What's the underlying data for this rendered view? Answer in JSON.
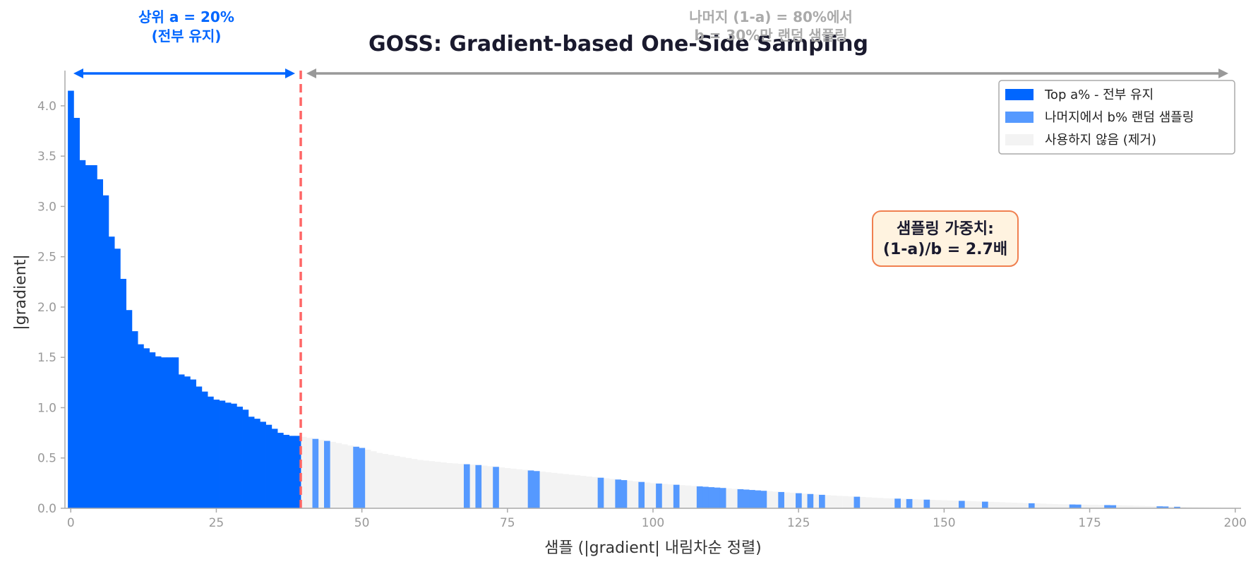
{
  "chart_data": {
    "type": "bar",
    "title": "GOSS: Gradient-based One-Side Sampling",
    "xlabel": "샘플 (|gradient| 내림차순 정렬)",
    "ylabel": "|gradient|",
    "xlim": [
      -1,
      201
    ],
    "ylim": [
      0,
      4.35
    ],
    "xticks": [
      0,
      25,
      50,
      75,
      100,
      125,
      150,
      175,
      200
    ],
    "yticks": [
      "0.0",
      "0.5",
      "1.0",
      "1.5",
      "2.0",
      "2.5",
      "3.0",
      "3.5",
      "4.0"
    ],
    "grid": false,
    "legend_position": "top-right",
    "threshold_x": 39.5,
    "series_names": [
      "Top a% - 전부 유지",
      "나머지에서 b% 랜덤 샘플링",
      "사용하지 않음 (제거)"
    ],
    "colors": {
      "top": "#0066ff",
      "sampled": "#5599ff",
      "unused": "#f3f3f3",
      "threshold": "#ff6666",
      "arrow_top": "#0066ff",
      "arrow_rest": "#999999",
      "weight_box_fill": "#fff3e0",
      "weight_box_edge": "#f08050"
    },
    "top_values": [
      4.15,
      3.88,
      3.46,
      3.41,
      3.41,
      3.27,
      3.11,
      2.7,
      2.58,
      2.28,
      1.97,
      1.76,
      1.63,
      1.59,
      1.55,
      1.51,
      1.5,
      1.5,
      1.5,
      1.33,
      1.31,
      1.28,
      1.21,
      1.16,
      1.11,
      1.08,
      1.07,
      1.05,
      1.04,
      1.01,
      0.98,
      0.91,
      0.89,
      0.86,
      0.83,
      0.79,
      0.75,
      0.73,
      0.72,
      0.72
    ],
    "rest_anchors": [
      [
        40,
        0.71
      ],
      [
        45,
        0.66
      ],
      [
        50,
        0.6
      ],
      [
        53,
        0.55
      ],
      [
        60,
        0.48
      ],
      [
        65,
        0.45
      ],
      [
        70,
        0.43
      ],
      [
        80,
        0.37
      ],
      [
        90,
        0.31
      ],
      [
        100,
        0.25
      ],
      [
        110,
        0.21
      ],
      [
        120,
        0.17
      ],
      [
        130,
        0.13
      ],
      [
        140,
        0.1
      ],
      [
        150,
        0.08
      ],
      [
        160,
        0.06
      ],
      [
        170,
        0.04
      ],
      [
        180,
        0.03
      ],
      [
        190,
        0.015
      ],
      [
        199,
        0.005
      ]
    ],
    "sampled_indices": [
      42,
      44,
      49,
      50,
      68,
      70,
      73,
      79,
      80,
      91,
      94,
      95,
      98,
      101,
      104,
      108,
      109,
      110,
      111,
      112,
      115,
      116,
      117,
      118,
      119,
      122,
      125,
      127,
      129,
      135,
      142,
      144,
      147,
      153,
      157,
      165,
      172,
      173,
      178,
      179,
      187,
      188,
      190
    ]
  },
  "annotations": {
    "top_line1": "상위 a = 20%",
    "top_line2": "(전부 유지)",
    "rest_line1": "나머지 (1-a) = 80%에서",
    "rest_line2": "b = 30%만 랜덤 샘플링",
    "weight_line1": "샘플링 가중치:",
    "weight_line2": "(1-a)/b = 2.7배"
  }
}
